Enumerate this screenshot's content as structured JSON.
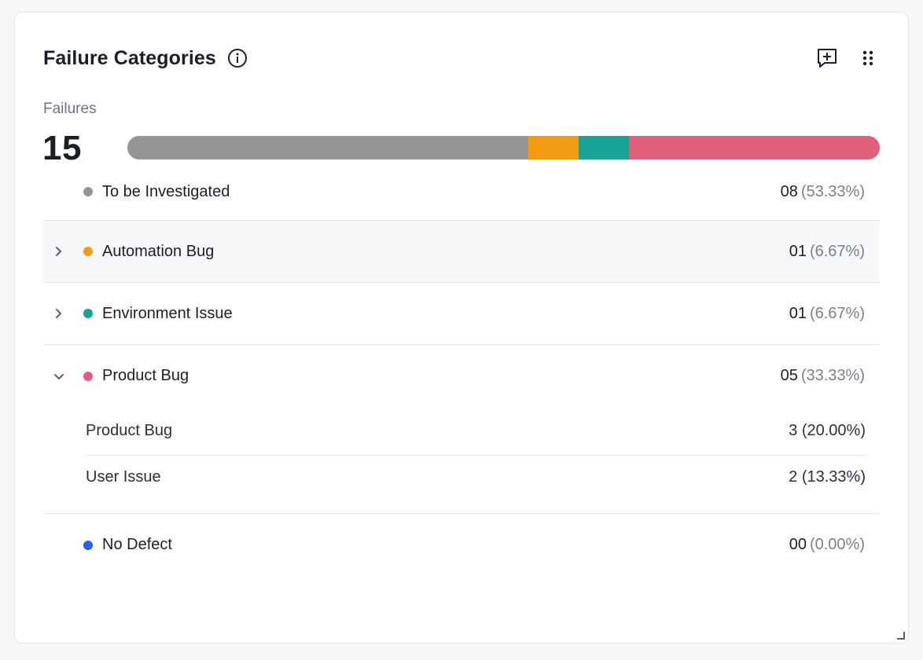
{
  "widget": {
    "title": "Failure Categories",
    "metric_label": "Failures",
    "metric_value": "15"
  },
  "icons": {
    "info": "info-circle-icon",
    "add_comment": "add-comment-icon",
    "drag": "drag-handle-icon",
    "chevron_right": "chevron-right-icon",
    "chevron_down": "chevron-down-icon"
  },
  "colors": {
    "to_be_investigated": "#959595",
    "automation_bug": "#f39c12",
    "environment_issue": "#17a497",
    "product_bug": "#e0607c",
    "no_defect": "#2563eb"
  },
  "distribution": [
    {
      "name": "To be Investigated",
      "fraction": 0.5333,
      "color": "#959595"
    },
    {
      "name": "Automation Bug",
      "fraction": 0.0667,
      "color": "#f39c12"
    },
    {
      "name": "Environment Issue",
      "fraction": 0.0667,
      "color": "#17a497"
    },
    {
      "name": "Product Bug",
      "fraction": 0.3333,
      "color": "#e0607c"
    }
  ],
  "categories": [
    {
      "label": "To be Investigated",
      "count": "08",
      "pct": "(53.33%)"
    },
    {
      "label": "Automation Bug",
      "count": "01",
      "pct": "(6.67%)"
    },
    {
      "label": "Environment Issue",
      "count": "01",
      "pct": "(6.67%)"
    },
    {
      "label": "Product Bug",
      "count": "05",
      "pct": "(33.33%)",
      "children": [
        {
          "label": "Product Bug",
          "value": "3 (20.00%)"
        },
        {
          "label": "User Issue",
          "value": "2 (13.33%)"
        }
      ]
    },
    {
      "label": "No Defect",
      "count": "00",
      "pct": "(0.00%)"
    }
  ]
}
